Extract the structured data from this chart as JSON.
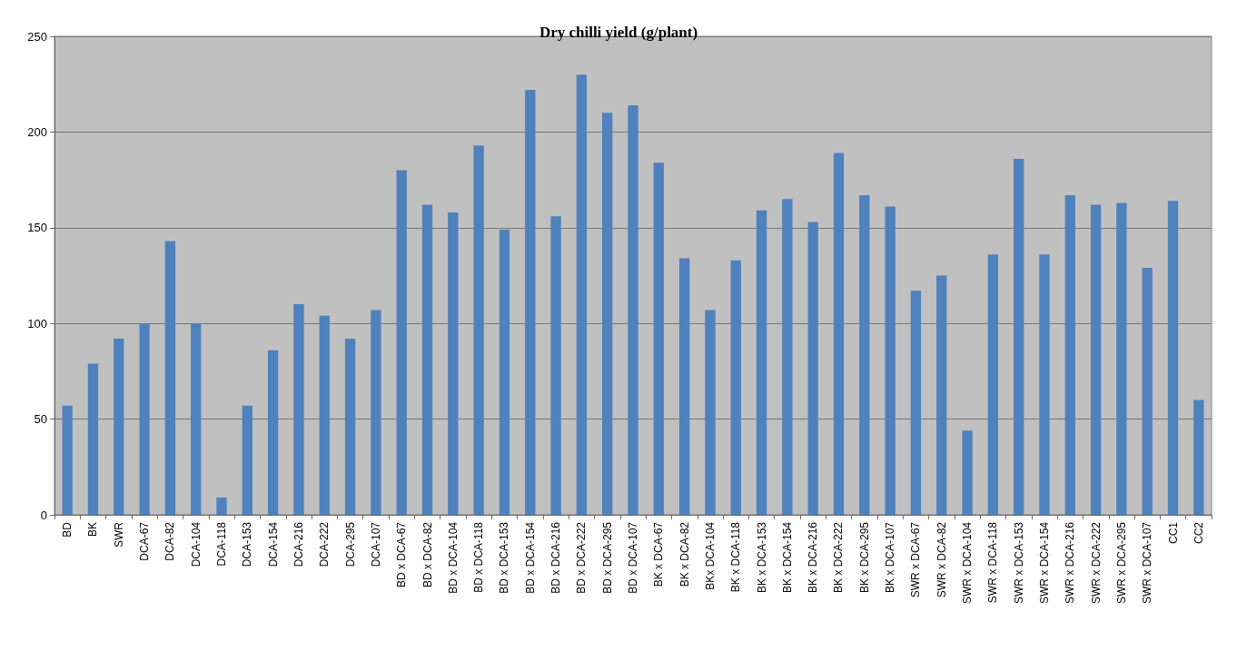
{
  "chart_data": {
    "type": "bar",
    "title": "Dry chilli yield (g/plant)",
    "categories": [
      "BD",
      "BK",
      "SWR",
      "DCA-67",
      "DCA-82",
      "DCA-104",
      "DCA-118",
      "DCA-153",
      "DCA-154",
      "DCA-216",
      "DCA-222",
      "DCA-295",
      "DCA-107",
      "BD x DCA-67",
      "BD x DCA-82",
      "BD x DCA-104",
      "BD x DCA-118",
      "BD x DCA-153",
      "BD x DCA-154",
      "BD x DCA-216",
      "BD x DCA-222",
      "BD x DCA-295",
      "BD x DCA-107",
      "BK x DCA-67",
      "BK x DCA-82",
      "BKx DCA-104",
      "BK x DCA-118",
      "BK x DCA-153",
      "BK x DCA-154",
      "BK x DCA-216",
      "BK x DCA-222",
      "BK x DCA-295",
      "BK x DCA-107",
      "SWR x DCA-67",
      "SWR x DCA-82",
      "SWR x DCA-104",
      "SWR x DCA-118",
      "SWR x DCA-153",
      "SWR x DCA-154",
      "SWR x DCA-216",
      "SWR x DCA-222",
      "SWR x DCA-295",
      "SWR x DCA-107",
      "CC1",
      "CC2"
    ],
    "values": [
      57,
      79,
      92,
      100,
      143,
      100,
      9,
      57,
      86,
      110,
      104,
      92,
      107,
      180,
      162,
      158,
      193,
      149,
      222,
      156,
      230,
      210,
      214,
      184,
      134,
      107,
      133,
      159,
      165,
      153,
      189,
      167,
      161,
      117,
      125,
      44,
      136,
      186,
      136,
      167,
      162,
      163,
      129,
      164,
      60
    ],
    "color": "#4f81bd",
    "ylim": [
      0,
      250
    ],
    "yticks": [
      0,
      50,
      100,
      150,
      200,
      250
    ],
    "grid": "y"
  }
}
